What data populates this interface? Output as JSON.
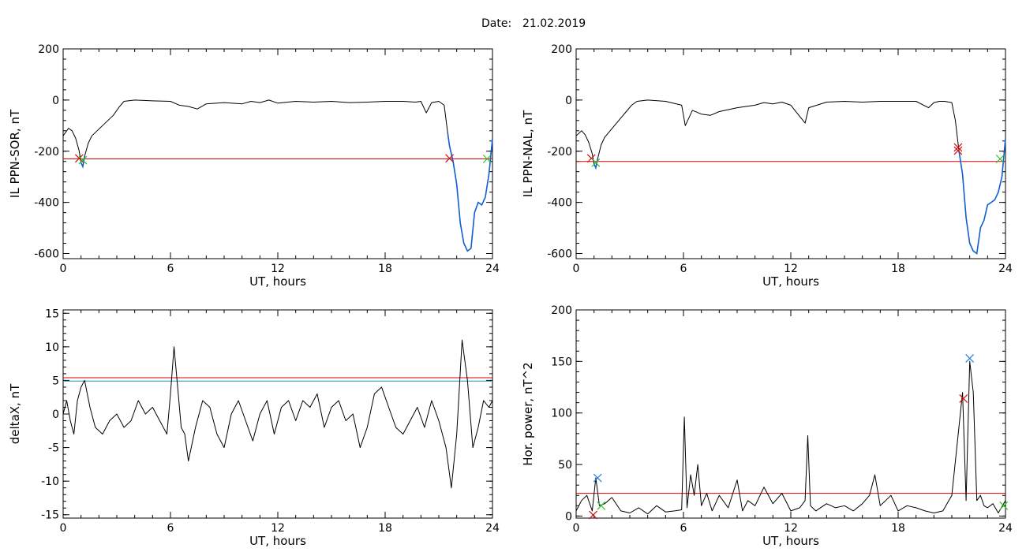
{
  "figure": {
    "date_label": "Date:",
    "date_value": "21.02.2019"
  },
  "colors": {
    "trace": "#000000",
    "threshold_red": "#e00000",
    "threshold_blue": "#1f8fc0",
    "highlight_blue": "#1060d0",
    "marker_green": "#2ec02e",
    "marker_red": "#d01010",
    "marker_blue": "#2080e0"
  },
  "chart_data": [
    {
      "id": "il-ppn-sor",
      "type": "line",
      "ylabel": "IL PPN-SOR, nT",
      "xlabel": "UT, hours",
      "xlim": [
        0,
        24
      ],
      "ylim": [
        -620,
        200
      ],
      "xticks": [
        0,
        6,
        12,
        18,
        24
      ],
      "yticks": [
        200,
        0,
        -200,
        -400,
        -600
      ],
      "grid": false,
      "x": [
        0,
        0.3,
        0.5,
        0.7,
        0.9,
        1.0,
        1.1,
        1.2,
        1.4,
        1.6,
        1.9,
        2.2,
        2.5,
        2.8,
        3.1,
        3.4,
        4,
        5,
        6,
        6.5,
        7,
        7.5,
        8,
        9,
        10,
        10.5,
        11,
        11.5,
        12,
        13,
        14,
        15,
        16,
        17,
        18,
        19,
        19.7,
        20,
        20.3,
        20.6,
        21,
        21.3,
        21.5,
        21.6,
        21.8,
        22,
        22.2,
        22.4,
        22.6,
        22.8,
        23,
        23.2,
        23.4,
        23.6,
        23.8,
        24
      ],
      "y": [
        -140,
        -110,
        -120,
        -150,
        -200,
        -245,
        -260,
        -220,
        -170,
        -140,
        -120,
        -100,
        -80,
        -60,
        -30,
        -5,
        0,
        -3,
        -5,
        -20,
        -25,
        -35,
        -15,
        -10,
        -15,
        -5,
        -10,
        0,
        -12,
        -5,
        -8,
        -5,
        -10,
        -8,
        -5,
        -5,
        -8,
        -5,
        -50,
        -10,
        -5,
        -20,
        -130,
        -180,
        -240,
        -330,
        -480,
        -560,
        -590,
        -580,
        -440,
        -400,
        -410,
        -380,
        -290,
        -150
      ],
      "threshold": -230,
      "highlight_segments": [
        [
          0.95,
          1.2
        ],
        [
          21.5,
          24
        ]
      ],
      "markers": [
        {
          "x": 0.9,
          "y": -228,
          "color": "red"
        },
        {
          "x": 1.1,
          "y": -235,
          "color": "green"
        },
        {
          "x": 21.6,
          "y": -228,
          "color": "red"
        },
        {
          "x": 23.7,
          "y": -230,
          "color": "green"
        }
      ]
    },
    {
      "id": "il-ppn-nal",
      "type": "line",
      "ylabel": "IL PPN-NAL, nT",
      "xlabel": "UT, hours",
      "xlim": [
        0,
        24
      ],
      "ylim": [
        -620,
        200
      ],
      "xticks": [
        0,
        6,
        12,
        18,
        24
      ],
      "yticks": [
        200,
        0,
        -200,
        -400,
        -600
      ],
      "grid": false,
      "x": [
        0,
        0.3,
        0.5,
        0.7,
        0.9,
        1.0,
        1.1,
        1.2,
        1.4,
        1.6,
        1.9,
        2.2,
        2.5,
        2.8,
        3.1,
        3.4,
        4,
        5,
        5.9,
        6.1,
        6.5,
        7,
        7.5,
        8,
        9,
        10,
        10.5,
        11,
        11.5,
        12,
        12.8,
        13,
        14,
        15,
        16,
        17,
        18,
        19,
        19.7,
        20,
        20.3,
        20.6,
        21,
        21.2,
        21.4,
        21.6,
        21.8,
        22,
        22.2,
        22.4,
        22.6,
        22.8,
        23,
        23.2,
        23.4,
        23.6,
        23.8,
        24
      ],
      "y": [
        -140,
        -120,
        -135,
        -165,
        -210,
        -250,
        -265,
        -230,
        -175,
        -145,
        -120,
        -95,
        -70,
        -45,
        -20,
        -5,
        0,
        -5,
        -20,
        -100,
        -40,
        -55,
        -60,
        -45,
        -30,
        -20,
        -10,
        -15,
        -8,
        -20,
        -90,
        -30,
        -8,
        -5,
        -8,
        -5,
        -5,
        -5,
        -30,
        -10,
        -5,
        -5,
        -10,
        -80,
        -200,
        -290,
        -460,
        -560,
        -590,
        -600,
        -500,
        -470,
        -410,
        -400,
        -390,
        -360,
        -300,
        -150
      ],
      "threshold": -240,
      "highlight_segments": [
        [
          0.95,
          1.2
        ],
        [
          21.3,
          24
        ]
      ],
      "markers": [
        {
          "x": 0.85,
          "y": -228,
          "color": "red"
        },
        {
          "x": 1.1,
          "y": -245,
          "color": "green"
        },
        {
          "x": 21.35,
          "y": -185,
          "color": "red"
        },
        {
          "x": 21.35,
          "y": -198,
          "color": "red"
        },
        {
          "x": 23.7,
          "y": -230,
          "color": "green"
        }
      ]
    },
    {
      "id": "delta-x",
      "type": "line",
      "ylabel": "deltaX, nT",
      "xlabel": "UT, hours",
      "xlim": [
        0,
        24
      ],
      "ylim": [
        -15.5,
        15.5
      ],
      "xticks": [
        0,
        6,
        12,
        18,
        24
      ],
      "yticks": [
        15,
        10,
        5,
        0,
        -5,
        -10,
        -15
      ],
      "grid": false,
      "x": [
        0,
        0.2,
        0.4,
        0.6,
        0.8,
        1.0,
        1.2,
        1.5,
        1.8,
        2.2,
        2.6,
        3.0,
        3.4,
        3.8,
        4.2,
        4.6,
        5.0,
        5.4,
        5.8,
        6.0,
        6.2,
        6.4,
        6.6,
        6.8,
        7.0,
        7.4,
        7.8,
        8.2,
        8.6,
        9.0,
        9.4,
        9.8,
        10.2,
        10.6,
        11.0,
        11.4,
        11.8,
        12.2,
        12.6,
        13.0,
        13.4,
        13.8,
        14.2,
        14.6,
        15.0,
        15.4,
        15.8,
        16.2,
        16.6,
        17.0,
        17.4,
        17.8,
        18.2,
        18.6,
        19.0,
        19.4,
        19.8,
        20.2,
        20.6,
        21.0,
        21.4,
        21.7,
        22.0,
        22.3,
        22.6,
        22.9,
        23.2,
        23.5,
        23.8,
        24
      ],
      "y": [
        0,
        2,
        -1,
        -3,
        2,
        4,
        5,
        1,
        -2,
        -3,
        -1,
        0,
        -2,
        -1,
        2,
        0,
        1,
        -1,
        -3,
        3,
        10,
        4,
        -2,
        -3,
        -7,
        -2,
        2,
        1,
        -3,
        -5,
        0,
        2,
        -1,
        -4,
        0,
        2,
        -3,
        1,
        2,
        -1,
        2,
        1,
        3,
        -2,
        1,
        2,
        -1,
        0,
        -5,
        -2,
        3,
        4,
        1,
        -2,
        -3,
        -1,
        1,
        -2,
        2,
        -1,
        -5,
        -11,
        -3,
        11,
        5,
        -5,
        -2,
        2,
        1,
        2
      ],
      "thresholds": [
        {
          "value": 5.4,
          "color": "red"
        },
        {
          "value": 4.9,
          "color": "blue"
        }
      ]
    },
    {
      "id": "hor-power",
      "type": "line",
      "ylabel": "Hor. power, nT^2",
      "xlabel": "UT, hours",
      "xlim": [
        0,
        24
      ],
      "ylim": [
        -2,
        200
      ],
      "xticks": [
        0,
        6,
        12,
        18,
        24
      ],
      "yticks": [
        200,
        150,
        100,
        50,
        0
      ],
      "grid": false,
      "x": [
        0,
        0.3,
        0.6,
        0.9,
        1.1,
        1.3,
        1.6,
        2.0,
        2.5,
        3.0,
        3.5,
        4.0,
        4.5,
        5.0,
        5.5,
        5.9,
        6.05,
        6.2,
        6.4,
        6.6,
        6.8,
        7.0,
        7.3,
        7.6,
        8.0,
        8.5,
        9.0,
        9.3,
        9.6,
        10.0,
        10.5,
        11.0,
        11.5,
        12.0,
        12.5,
        12.8,
        12.95,
        13.1,
        13.4,
        14.0,
        14.5,
        15.0,
        15.5,
        16.0,
        16.4,
        16.7,
        17.0,
        17.3,
        17.6,
        18.0,
        18.5,
        19.0,
        19.5,
        20.0,
        20.5,
        21.0,
        21.3,
        21.6,
        21.8,
        22.0,
        22.2,
        22.4,
        22.6,
        22.8,
        23.0,
        23.3,
        23.6,
        24
      ],
      "y": [
        5,
        15,
        20,
        5,
        37,
        10,
        12,
        18,
        5,
        3,
        8,
        2,
        10,
        4,
        5,
        6,
        96,
        8,
        40,
        20,
        50,
        10,
        22,
        5,
        20,
        8,
        35,
        5,
        15,
        10,
        28,
        12,
        22,
        5,
        8,
        15,
        78,
        10,
        5,
        12,
        8,
        10,
        5,
        12,
        20,
        40,
        10,
        15,
        20,
        5,
        10,
        8,
        5,
        3,
        5,
        20,
        70,
        120,
        15,
        150,
        120,
        15,
        20,
        10,
        8,
        12,
        3,
        15
      ],
      "threshold": 22,
      "markers": [
        {
          "x": 0.95,
          "y": 1,
          "color": "red"
        },
        {
          "x": 1.2,
          "y": 37,
          "color": "blue"
        },
        {
          "x": 1.4,
          "y": 10,
          "color": "green"
        },
        {
          "x": 21.65,
          "y": 114,
          "color": "red"
        },
        {
          "x": 22.0,
          "y": 153,
          "color": "blue"
        },
        {
          "x": 23.9,
          "y": 10,
          "color": "green"
        }
      ]
    }
  ]
}
